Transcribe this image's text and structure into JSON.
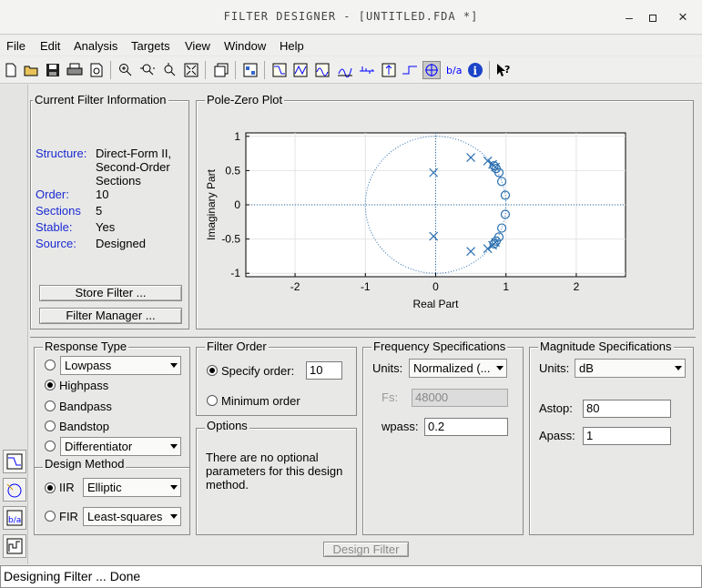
{
  "window": {
    "title": "FILTER DESIGNER - [UNTITLED.FDA *]",
    "min_glyph": "–",
    "max_glyph": "□",
    "close_glyph": "×"
  },
  "menu": [
    {
      "label": "File"
    },
    {
      "label": "Edit"
    },
    {
      "label": "Analysis"
    },
    {
      "label": "Targets"
    },
    {
      "label": "View"
    },
    {
      "label": "Window"
    },
    {
      "label": "Help"
    }
  ],
  "toolbar_icons": [
    "new-icon",
    "open-icon",
    "save-icon",
    "print-icon",
    "print-preview-icon",
    "zoom-in-icon",
    "zoom-x-icon",
    "zoom-y-icon",
    "full-view-icon",
    "new-plot-icon",
    "layout-icon",
    "magnitude-response-icon",
    "phase-response-icon",
    "group-delay-icon",
    "phase-delay-icon",
    "impulse-response-icon",
    "step-response-icon",
    "pole-zero-icon",
    "filter-coefficients-icon",
    "filter-info-icon",
    "whats-this-icon"
  ],
  "current_filter_info": {
    "title": "Current Filter Information",
    "structure_label": "Structure:",
    "structure_lines": [
      "Direct-Form II,",
      "Second-Order",
      "Sections"
    ],
    "order_label": "Order:",
    "order_value": "10",
    "sections_label": "Sections",
    "sections_value": "5",
    "stable_label": "Stable:",
    "stable_value": "Yes",
    "source_label": "Source:",
    "source_value": "Designed",
    "store_button": "Store Filter ...",
    "manager_button": "Filter Manager ..."
  },
  "pole_zero": {
    "title": "Pole-Zero Plot",
    "chart_data": {
      "type": "scatter",
      "title": "",
      "xlabel": "Real Part",
      "ylabel": "Imaginary Part",
      "xlim": [
        -2.7,
        2.7
      ],
      "ylim": [
        -1.05,
        1.05
      ],
      "xticks": [
        -2,
        -1,
        0,
        1,
        2
      ],
      "yticks": [
        1,
        0.5,
        0,
        -0.5,
        -1
      ],
      "grid": true,
      "unit_circle": true,
      "poles": [
        [
          -0.03,
          0.47
        ],
        [
          -0.03,
          -0.46
        ],
        [
          0.5,
          0.69
        ],
        [
          0.5,
          -0.68
        ],
        [
          0.74,
          0.64
        ],
        [
          0.74,
          -0.64
        ],
        [
          0.81,
          0.59
        ],
        [
          0.81,
          -0.59
        ],
        [
          0.85,
          0.55
        ],
        [
          0.85,
          -0.55
        ]
      ],
      "zeros": [
        [
          0.86,
          0.53
        ],
        [
          0.86,
          -0.53
        ],
        [
          0.9,
          0.47
        ],
        [
          0.9,
          -0.47
        ],
        [
          0.94,
          0.34
        ],
        [
          0.94,
          -0.34
        ],
        [
          0.99,
          0.14
        ],
        [
          0.99,
          -0.14
        ],
        [
          0.83,
          0.57
        ],
        [
          0.83,
          -0.57
        ]
      ],
      "color": "#2a6fb0"
    }
  },
  "response_type": {
    "title": "Response Type",
    "options": [
      {
        "label": "Lowpass",
        "selected": false,
        "dropdown": true
      },
      {
        "label": "Highpass",
        "selected": true,
        "dropdown": false
      },
      {
        "label": "Bandpass",
        "selected": false,
        "dropdown": false
      },
      {
        "label": "Bandstop",
        "selected": false,
        "dropdown": false
      },
      {
        "label": "Differentiator",
        "selected": false,
        "dropdown": true
      }
    ]
  },
  "design_method": {
    "title": "Design Method",
    "iir_label": "IIR",
    "iir_value": "Elliptic",
    "fir_label": "FIR",
    "fir_value": "Least-squares"
  },
  "filter_order": {
    "title": "Filter Order",
    "specify_label": "Specify order:",
    "specify_value": "10",
    "minimum_label": "Minimum order"
  },
  "options": {
    "title": "Options",
    "text_lines": [
      "There are no optional",
      "parameters for this design",
      "method."
    ]
  },
  "frequency_specs": {
    "title": "Frequency Specifications",
    "units_label": "Units:",
    "units_value": "Normalized (...",
    "fs_label": "Fs:",
    "fs_value": "48000",
    "wpass_label": "wpass:",
    "wpass_value": "0.2"
  },
  "magnitude_specs": {
    "title": "Magnitude Specifications",
    "units_label": "Units:",
    "units_value": "dB",
    "astop_label": "Astop:",
    "astop_value": "80",
    "apass_label": "Apass:",
    "apass_value": "1"
  },
  "design_button": "Design Filter",
  "status": "Designing Filter ... Done"
}
